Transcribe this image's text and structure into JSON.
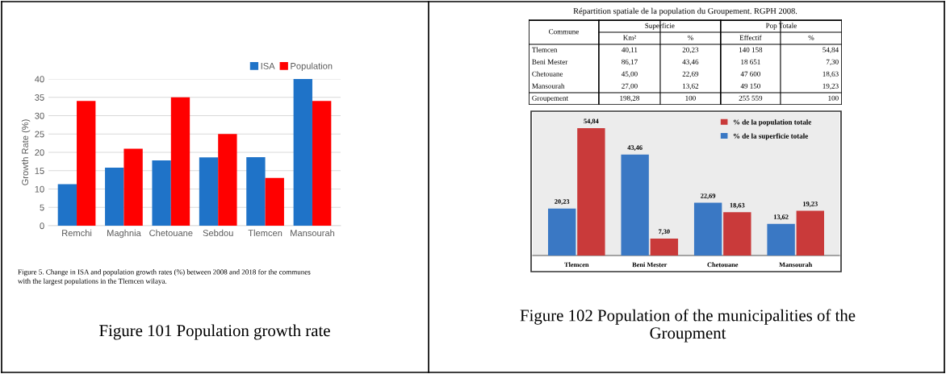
{
  "chart_data": [
    {
      "type": "bar",
      "categories": [
        "Remchi",
        "Maghnia",
        "Chetouane",
        "Sebdou",
        "Tlemcen",
        "Mansourah"
      ],
      "ylabel": "Growth Rate (%)",
      "ylim": [
        0,
        40
      ],
      "yticks": [
        0,
        5,
        10,
        15,
        20,
        25,
        30,
        35,
        40
      ],
      "grid": "y",
      "legend": "top right",
      "series": [
        {
          "name": "ISA",
          "color": "#1f73c8",
          "values": [
            11.3,
            15.8,
            17.8,
            18.6,
            18.7,
            40
          ]
        },
        {
          "name": "Population",
          "color": "#ff0000",
          "values": [
            34,
            21,
            35,
            25,
            13,
            34
          ]
        }
      ],
      "annotations": [
        "Figure 5. Change in ISA and population growth rates (%) between 2008 and 2018 for the communes\nwith the largest populations in the Tlemcen wilaya.",
        "Figure 101 Population growth rate"
      ]
    },
    {
      "type": "other",
      "title": "Répartition spatiale de la population du Groupement. RGPH 2008.",
      "annotations": [
        "Commune",
        "Superficie",
        "Pop Totale",
        "Km²",
        "%",
        "Effectif",
        "%",
        "Tlemcen",
        "40,11",
        "20,23",
        "140 158",
        "54,84",
        "Beni Mester",
        "86,17",
        "43,46",
        "18 651",
        "7,30",
        "Chetouane",
        "45,00",
        "22,69",
        "47 600",
        "18,63",
        "Mansourah",
        "27,00",
        "13,62",
        "49 150",
        "19,23",
        "Groupement",
        "198,28",
        "100",
        "255 559",
        "100"
      ]
    },
    {
      "type": "bar",
      "categories": [
        "Tlemcen",
        "Beni Mester",
        "Chetouane",
        "Mansourah"
      ],
      "tick_labels": "x",
      "legend": "top right",
      "series": [
        {
          "name": "% de la superficie totale",
          "color": "#3a78c4",
          "values": [
            20.23,
            43.46,
            22.69,
            13.62
          ],
          "value_labels": [
            "20,23",
            "43,46",
            "22,69",
            "13,62"
          ]
        },
        {
          "name": "% de la population totale",
          "color": "#c93a3a",
          "values": [
            54.84,
            7.3,
            18.63,
            19.23
          ],
          "value_labels": [
            "54,84",
            "7,30",
            "18,63",
            "19,23"
          ]
        }
      ],
      "annotations": [
        "Figure 102 Population of the municipalities of the\nGroupment"
      ]
    }
  ]
}
